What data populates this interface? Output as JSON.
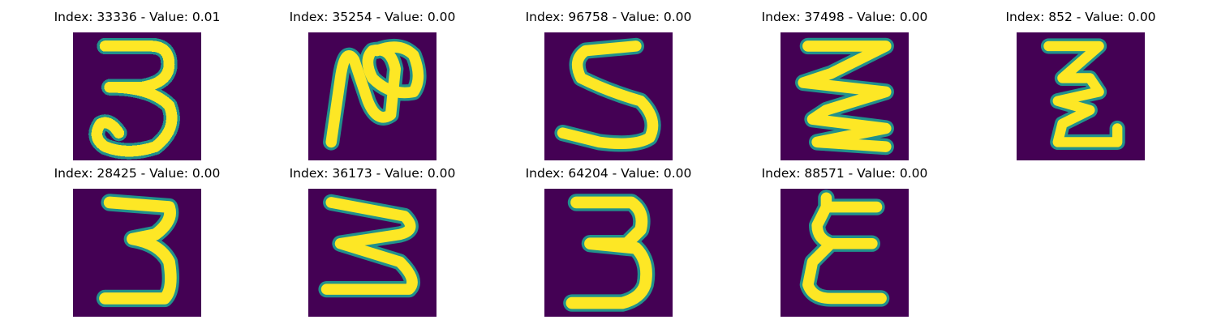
{
  "colors": {
    "background": "#440154",
    "mid": "#21918c",
    "stroke": "#fde725",
    "edge": "#5ec962"
  },
  "panels": [
    {
      "title": "Index: 33336 - Value: 0.01",
      "glyph": "3",
      "style": "loop"
    },
    {
      "title": "Index: 35254 - Value: 0.00",
      "glyph": "N",
      "style": "cursive"
    },
    {
      "title": "Index: 96758 - Value: 0.00",
      "glyph": "S",
      "style": "plain"
    },
    {
      "title": "Index: 37498 - Value: 0.00",
      "glyph": "zigzag",
      "style": "plain"
    },
    {
      "title": "Index: 852 - Value: 0.00",
      "glyph": "zigzag-small",
      "style": "plain"
    },
    {
      "title": "Index: 28425 - Value: 0.00",
      "glyph": "3",
      "style": "plain"
    },
    {
      "title": "Index: 36173 - Value: 0.00",
      "glyph": "3-wide",
      "style": "plain"
    },
    {
      "title": "Index: 64204 - Value: 0.00",
      "glyph": "3-tall",
      "style": "plain"
    },
    {
      "title": "Index: 88571 - Value: 0.00",
      "glyph": "E",
      "style": "plain"
    }
  ]
}
